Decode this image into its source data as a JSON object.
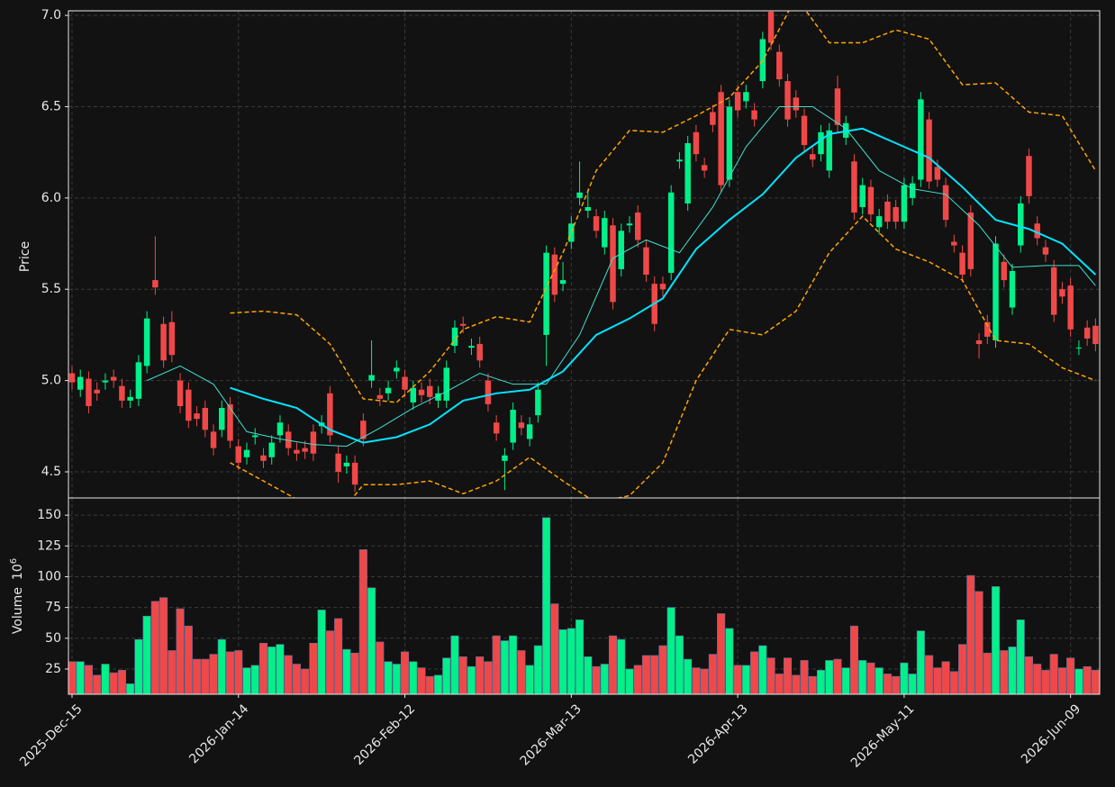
{
  "chart_data": {
    "type": "candlestick",
    "xlim": [
      -0.43,
      123.5
    ],
    "xticks": [
      {
        "value": 0,
        "label": "2025-Dec-15"
      },
      {
        "value": 20,
        "label": "2026-Jan-14"
      },
      {
        "value": 40,
        "label": "2026-Feb-12"
      },
      {
        "value": 60,
        "label": "2026-Mar-13"
      },
      {
        "value": 80,
        "label": "2026-Apr-13"
      },
      {
        "value": 100,
        "label": "2026-May-11"
      },
      {
        "value": 120,
        "label": "2026-Jun-09"
      }
    ],
    "ylim": [
      4.357,
      7.025
    ],
    "yticks": [
      4.5,
      {
        "value": 5,
        "label": "5.0"
      },
      5.5,
      {
        "value": 6,
        "label": "6.0"
      },
      6.5,
      {
        "value": 7,
        "label": "7.0"
      }
    ],
    "y_label": "Price",
    "grid": true,
    "up_color": "#00f08a",
    "down_color": "#f04848",
    "open": [
      5.04,
      4.95,
      5.01,
      4.95,
      4.99,
      5.02,
      4.97,
      4.89,
      4.9,
      5.08,
      5.55,
      5.31,
      5.32,
      5.0,
      4.95,
      4.82,
      4.85,
      4.72,
      4.73,
      4.87,
      4.64,
      4.58,
      4.69,
      4.59,
      4.58,
      4.7,
      4.72,
      4.62,
      4.63,
      4.72,
      4.75,
      4.93,
      4.6,
      4.53,
      4.55,
      4.78,
      5.0,
      4.92,
      4.93,
      5.05,
      5.02,
      4.88,
      4.95,
      4.97,
      4.89,
      4.89,
      5.19,
      5.31,
      5.18,
      5.2,
      5.0,
      4.77,
      4.56,
      4.66,
      4.77,
      4.68,
      4.81,
      5.25,
      5.69,
      5.53,
      5.76,
      6.0,
      5.93,
      5.9,
      5.73,
      5.85,
      5.61,
      5.85,
      5.92,
      5.73,
      5.53,
      5.53,
      5.59,
      6.2,
      5.97,
      6.36,
      6.18,
      6.47,
      6.58,
      6.1,
      6.58,
      6.53,
      6.48,
      6.64,
      7.02,
      6.8,
      6.64,
      6.55,
      6.45,
      6.24,
      6.24,
      6.15,
      6.6,
      6.33,
      6.2,
      5.95,
      6.06,
      5.84,
      5.98,
      5.95,
      5.87,
      6.0,
      6.1,
      6.43,
      6.17,
      6.07,
      5.76,
      5.7,
      5.92,
      5.22,
      5.32,
      5.22,
      5.65,
      5.4,
      5.74,
      6.23,
      5.86,
      5.73,
      5.62,
      5.5,
      5.52,
      5.18,
      5.29,
      5.3
    ],
    "high": [
      5.08,
      5.06,
      5.05,
      4.99,
      5.04,
      5.06,
      5.01,
      4.95,
      5.14,
      5.38,
      5.79,
      5.35,
      5.38,
      5.04,
      4.99,
      4.86,
      4.89,
      4.76,
      4.89,
      4.91,
      4.68,
      4.66,
      4.74,
      4.63,
      4.7,
      4.81,
      4.76,
      4.66,
      4.67,
      4.76,
      4.81,
      4.97,
      4.64,
      4.59,
      4.59,
      4.82,
      5.22,
      4.96,
      5.0,
      5.11,
      5.06,
      5.0,
      4.99,
      5.01,
      4.97,
      5.11,
      5.33,
      5.35,
      5.23,
      5.24,
      5.04,
      4.81,
      4.63,
      4.88,
      4.81,
      4.8,
      4.99,
      5.74,
      5.73,
      5.65,
      5.9,
      6.2,
      6.05,
      5.94,
      5.93,
      5.89,
      5.86,
      5.9,
      5.96,
      5.77,
      5.57,
      5.57,
      6.07,
      6.25,
      6.34,
      6.4,
      6.22,
      6.51,
      6.62,
      6.54,
      6.62,
      6.62,
      6.52,
      6.91,
      7.06,
      6.84,
      6.68,
      6.59,
      6.49,
      6.28,
      6.4,
      6.41,
      6.67,
      6.45,
      6.24,
      6.11,
      6.1,
      5.94,
      6.02,
      5.99,
      6.11,
      6.12,
      6.58,
      6.47,
      6.21,
      6.11,
      5.8,
      5.74,
      5.96,
      5.26,
      5.36,
      5.79,
      5.69,
      5.64,
      6.01,
      6.27,
      5.9,
      5.77,
      5.66,
      5.54,
      5.56,
      5.22,
      5.33,
      5.34
    ],
    "low": [
      4.95,
      4.91,
      4.82,
      4.89,
      4.95,
      4.96,
      4.85,
      4.85,
      4.86,
      5.04,
      5.47,
      5.07,
      5.1,
      4.82,
      4.74,
      4.75,
      4.69,
      4.59,
      4.69,
      4.63,
      4.51,
      4.54,
      4.65,
      4.52,
      4.54,
      4.66,
      4.59,
      4.56,
      4.57,
      4.56,
      4.71,
      4.66,
      4.44,
      4.49,
      4.39,
      4.64,
      4.96,
      4.86,
      4.89,
      5.01,
      4.91,
      4.84,
      4.88,
      4.87,
      4.85,
      4.85,
      5.15,
      5.26,
      5.14,
      5.07,
      4.83,
      4.67,
      4.4,
      4.62,
      4.7,
      4.64,
      4.77,
      5.08,
      5.43,
      5.49,
      5.72,
      5.96,
      5.89,
      5.78,
      5.69,
      5.39,
      5.57,
      5.81,
      5.73,
      5.54,
      5.27,
      5.46,
      5.55,
      6.16,
      5.93,
      6.2,
      6.11,
      6.36,
      6.03,
      6.06,
      6.44,
      6.49,
      6.39,
      6.6,
      6.81,
      6.61,
      6.39,
      6.44,
      6.25,
      6.17,
      6.2,
      6.11,
      6.36,
      6.29,
      5.88,
      5.91,
      5.87,
      5.8,
      5.83,
      5.83,
      5.83,
      5.96,
      6.06,
      6.05,
      6.06,
      5.84,
      5.7,
      5.54,
      5.57,
      5.12,
      5.2,
      5.18,
      5.51,
      5.36,
      5.7,
      5.97,
      5.74,
      5.65,
      5.32,
      5.42,
      5.24,
      5.14,
      5.19,
      5.16
    ],
    "close": [
      4.99,
      5.02,
      4.86,
      4.93,
      5.0,
      5.0,
      4.89,
      4.91,
      5.1,
      5.34,
      5.51,
      5.11,
      5.14,
      4.86,
      4.78,
      4.79,
      4.73,
      4.63,
      4.85,
      4.67,
      4.55,
      4.62,
      4.7,
      4.56,
      4.66,
      4.77,
      4.63,
      4.6,
      4.61,
      4.6,
      4.77,
      4.7,
      4.5,
      4.55,
      4.43,
      4.68,
      5.03,
      4.9,
      4.96,
      5.07,
      4.95,
      4.96,
      4.92,
      4.91,
      4.93,
      5.07,
      5.29,
      5.3,
      5.19,
      5.11,
      4.87,
      4.71,
      4.59,
      4.84,
      4.74,
      4.76,
      4.95,
      5.7,
      5.47,
      5.55,
      5.86,
      6.03,
      5.95,
      5.82,
      5.89,
      5.43,
      5.82,
      5.86,
      5.77,
      5.58,
      5.31,
      5.5,
      6.03,
      6.21,
      6.3,
      6.24,
      6.15,
      6.4,
      6.07,
      6.5,
      6.48,
      6.58,
      6.43,
      6.87,
      6.85,
      6.65,
      6.43,
      6.48,
      6.29,
      6.21,
      6.36,
      6.37,
      6.4,
      6.41,
      5.92,
      6.07,
      5.91,
      5.9,
      5.87,
      5.87,
      6.07,
      6.08,
      6.54,
      6.09,
      6.1,
      5.88,
      5.74,
      5.58,
      5.61,
      5.2,
      5.24,
      5.75,
      5.55,
      5.6,
      5.97,
      6.01,
      5.78,
      5.69,
      5.36,
      5.46,
      5.28,
      5.18,
      5.23,
      5.2
    ],
    "overlays": [
      {
        "x": [
          19,
          23,
          27,
          31,
          35,
          39,
          43,
          47,
          51,
          55,
          59,
          63,
          67,
          71,
          75,
          79,
          83,
          87,
          91,
          95,
          99,
          103,
          107,
          111,
          115,
          119,
          123
        ],
        "values": [
          5.37,
          5.38,
          5.36,
          5.2,
          4.9,
          4.88,
          5.05,
          5.28,
          5.35,
          5.32,
          5.7,
          6.15,
          6.37,
          6.36,
          6.45,
          6.55,
          6.75,
          7.1,
          6.85,
          6.85,
          6.92,
          6.87,
          6.62,
          6.63,
          6.47,
          6.45,
          6.15
        ],
        "color": "#ffa500",
        "width": 1.5,
        "dashed": true
      },
      {
        "x": [
          19,
          23,
          27,
          31,
          35,
          39,
          43,
          47,
          51,
          55,
          59,
          63,
          67,
          71,
          75,
          79,
          83,
          87,
          91,
          95,
          99,
          103,
          107,
          111,
          115,
          119,
          123
        ],
        "values": [
          4.55,
          4.45,
          4.35,
          4.2,
          4.43,
          4.43,
          4.45,
          4.38,
          4.45,
          4.58,
          4.45,
          4.33,
          4.37,
          4.55,
          5.0,
          5.28,
          5.25,
          5.38,
          5.7,
          5.9,
          5.72,
          5.65,
          5.55,
          5.22,
          5.2,
          5.07,
          5.0
        ],
        "color": "#ffa500",
        "width": 1.5,
        "dashed": true
      },
      {
        "x": [
          9,
          13,
          17,
          21,
          25,
          29,
          33,
          37,
          41,
          45,
          49,
          53,
          57,
          61,
          65,
          69,
          73,
          77,
          81,
          85,
          89,
          93,
          97,
          101,
          105,
          109,
          113,
          117,
          121,
          123
        ],
        "values": [
          5.0,
          5.08,
          4.98,
          4.72,
          4.68,
          4.65,
          4.64,
          4.74,
          4.85,
          4.94,
          5.04,
          4.98,
          4.98,
          5.25,
          5.67,
          5.77,
          5.7,
          5.95,
          6.28,
          6.5,
          6.5,
          6.38,
          6.15,
          6.05,
          6.02,
          5.85,
          5.62,
          5.63,
          5.63,
          5.52
        ],
        "color": "#40e0d0",
        "width": 1,
        "dashed": false
      },
      {
        "x": [
          19,
          23,
          27,
          31,
          35,
          39,
          43,
          47,
          51,
          55,
          59,
          63,
          67,
          71,
          75,
          79,
          83,
          87,
          91,
          95,
          99,
          103,
          107,
          111,
          115,
          119,
          123
        ],
        "values": [
          4.96,
          4.9,
          4.85,
          4.73,
          4.66,
          4.69,
          4.76,
          4.89,
          4.93,
          4.95,
          5.05,
          5.25,
          5.34,
          5.45,
          5.72,
          5.88,
          6.02,
          6.22,
          6.35,
          6.38,
          6.3,
          6.22,
          6.06,
          5.88,
          5.83,
          5.75,
          5.58
        ],
        "color": "#00e5ff",
        "width": 2,
        "dashed": false
      }
    ],
    "volume": {
      "type": "bar",
      "y_label": "Volume",
      "offset_label": "10",
      "offset_exponent": "6",
      "ylim": [
        4.5,
        164
      ],
      "yticks": [
        25,
        50,
        75,
        100,
        125,
        150
      ],
      "values": [
        31,
        31,
        28,
        20,
        29,
        22,
        24,
        13,
        49,
        68,
        80,
        83,
        40,
        74,
        60,
        33,
        33,
        37,
        49,
        39,
        40,
        26,
        28,
        46,
        43,
        45,
        36,
        29,
        25,
        46,
        73,
        56,
        66,
        41,
        38,
        122,
        91,
        47,
        31,
        29,
        39,
        31,
        26,
        19,
        20,
        34,
        52,
        35,
        27,
        35,
        31,
        52,
        48,
        52,
        40,
        28,
        44,
        148,
        78,
        57,
        58,
        65,
        35,
        27,
        29,
        52,
        49,
        25,
        28,
        36,
        36,
        44,
        75,
        52,
        33,
        26,
        25,
        37,
        70,
        58,
        28,
        28,
        39,
        44,
        34,
        21,
        34,
        20,
        32,
        19,
        24,
        32,
        33,
        26,
        60,
        32,
        30,
        26,
        21,
        19,
        30,
        21,
        56,
        36,
        26,
        31,
        23,
        45,
        101,
        88,
        38,
        92,
        40,
        43,
        65,
        35,
        29,
        24,
        37,
        26,
        34,
        25,
        27,
        24
      ]
    }
  }
}
